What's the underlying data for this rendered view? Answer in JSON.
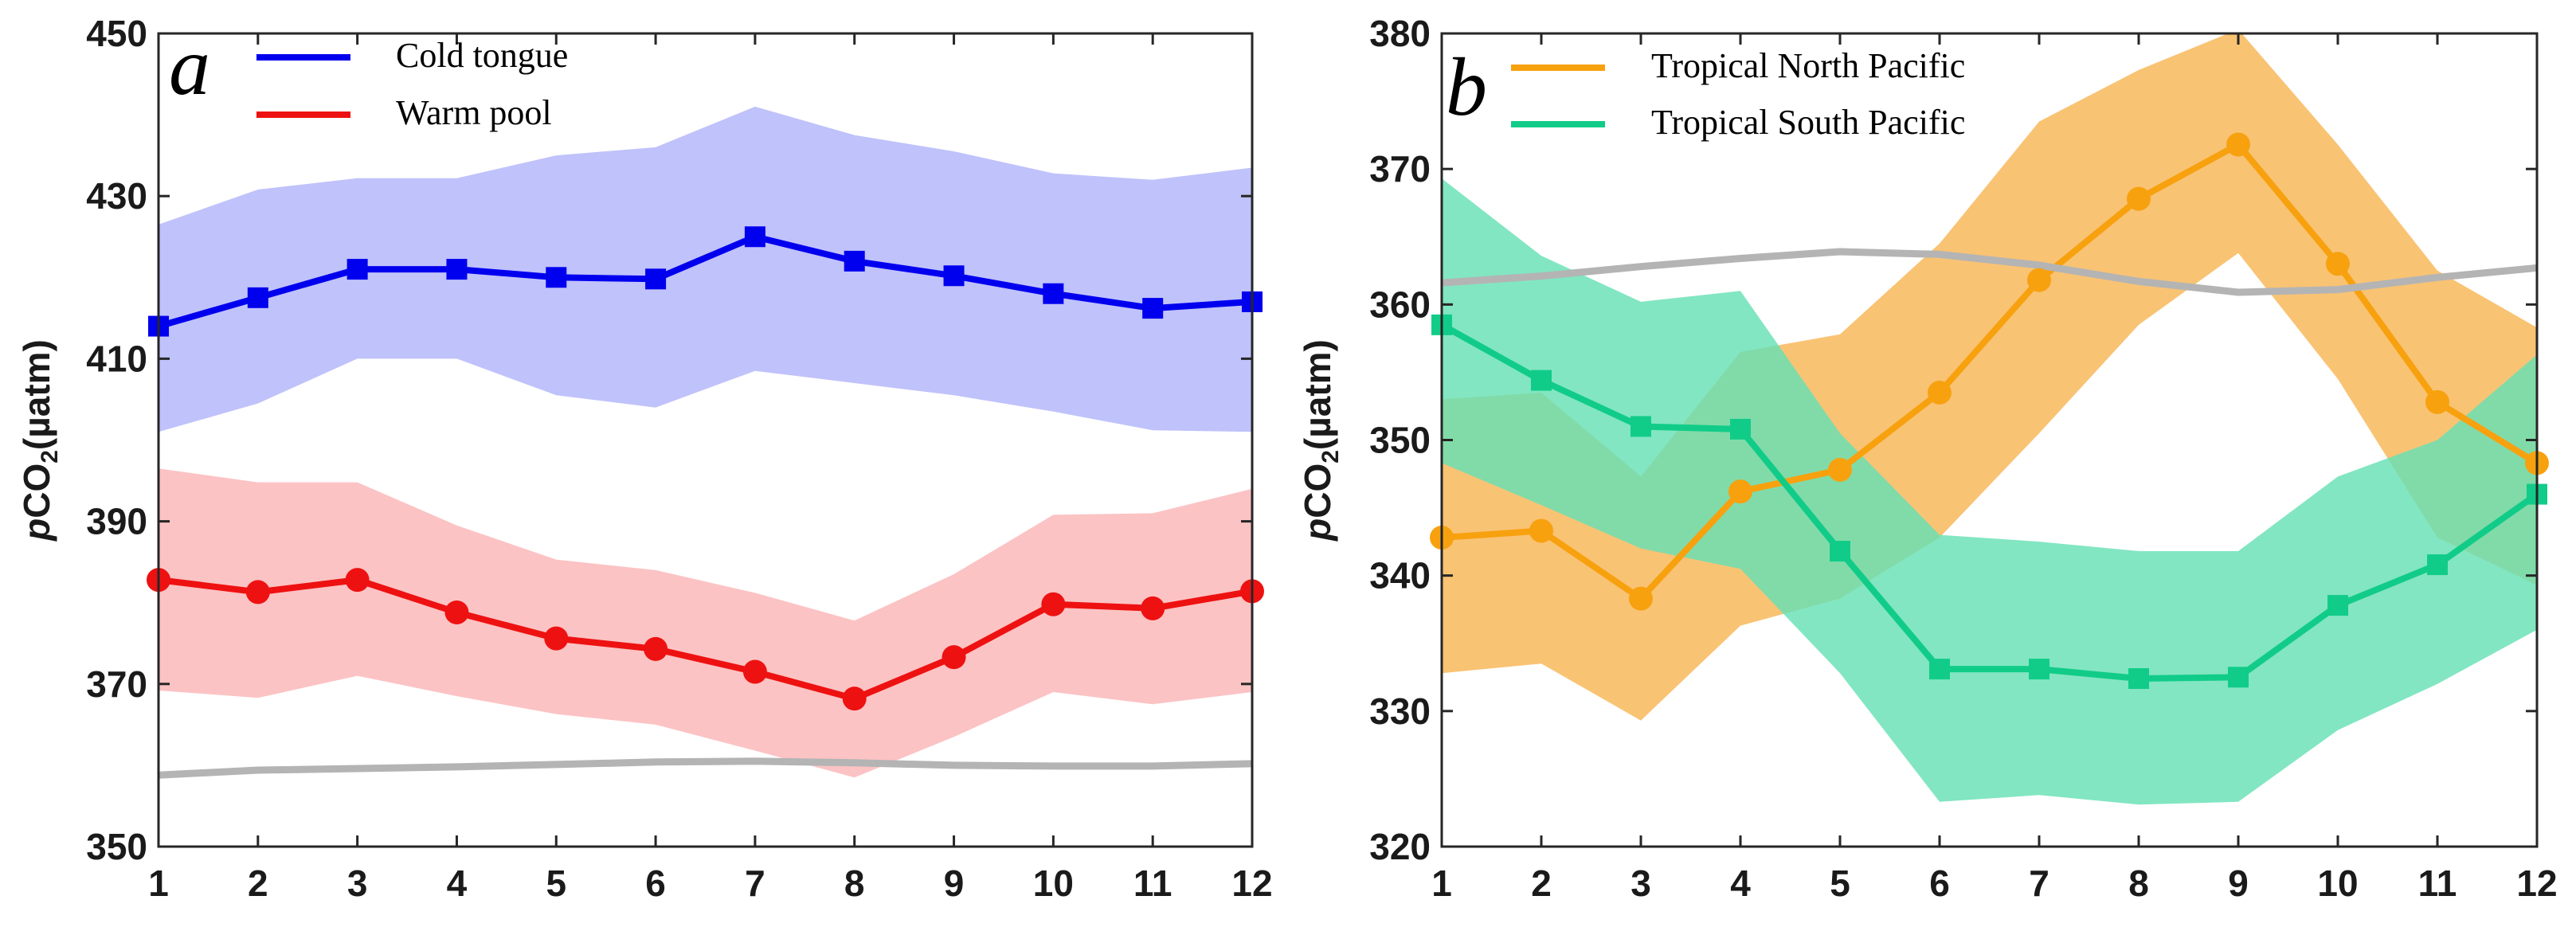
{
  "chart_data": [
    {
      "type": "line",
      "panel": "a",
      "ylabel_prefix": "p",
      "ylabel_main": "CO",
      "ylabel_sub": "2",
      "ylabel_unit": "(µatm)",
      "x": [
        1,
        2,
        3,
        4,
        5,
        6,
        7,
        8,
        9,
        10,
        11,
        12
      ],
      "xlim": [
        1,
        12
      ],
      "ylim": [
        350,
        450
      ],
      "yticks": [
        350,
        370,
        390,
        410,
        430,
        450
      ],
      "legend_position": "top-left",
      "series": [
        {
          "name": "Cold tongue",
          "color": "#0000ee",
          "band_color": "#c0c2fb",
          "marker": "square",
          "values": [
            414,
            417.5,
            421,
            421,
            420,
            419.8,
            425,
            422,
            420.2,
            418,
            416.2,
            417
          ],
          "upper": [
            426.5,
            430.8,
            432.2,
            432.2,
            435,
            436,
            441,
            437.5,
            435.5,
            432.8,
            432,
            433.5
          ],
          "lower": [
            401,
            404.5,
            410,
            410,
            405.5,
            404,
            408.5,
            407,
            405.5,
            403.5,
            401.2,
            401
          ]
        },
        {
          "name": "Warm pool",
          "color": "#ee1111",
          "band_color": "#fcc3c4",
          "marker": "circle",
          "values": [
            382.8,
            381.3,
            382.8,
            378.8,
            375.6,
            374.3,
            371.5,
            368.2,
            373.3,
            379.8,
            379.3,
            381.4
          ],
          "upper": [
            396.5,
            394.8,
            394.8,
            389.5,
            385.3,
            384,
            381.2,
            377.8,
            383.5,
            390.8,
            391,
            394
          ],
          "lower": [
            369.2,
            368.3,
            371,
            368.5,
            366.3,
            365,
            361.8,
            358.5,
            363.5,
            369,
            367.5,
            369
          ]
        },
        {
          "name": "",
          "color": "#b4b4b4",
          "marker": "none",
          "values": [
            358.8,
            359.4,
            359.6,
            359.8,
            360.1,
            360.4,
            360.5,
            360.3,
            360.0,
            359.9,
            359.9,
            360.2
          ]
        }
      ]
    },
    {
      "type": "line",
      "panel": "b",
      "ylabel_prefix": "p",
      "ylabel_main": "CO",
      "ylabel_sub": "2",
      "ylabel_unit": "(µatm)",
      "x": [
        1,
        2,
        3,
        4,
        5,
        6,
        7,
        8,
        9,
        10,
        11,
        12
      ],
      "xlim": [
        1,
        12
      ],
      "ylim": [
        320,
        380
      ],
      "yticks": [
        320,
        330,
        340,
        350,
        360,
        370,
        380
      ],
      "legend_position": "top-left",
      "series": [
        {
          "name": "Tropical North Pacific",
          "color": "#f7a10f",
          "band_color": "#f9c06d",
          "marker": "circle",
          "values": [
            342.8,
            343.3,
            338.3,
            346.2,
            347.8,
            353.5,
            361.8,
            367.8,
            371.8,
            363,
            352.8,
            348.3
          ],
          "upper": [
            353,
            353.5,
            347.3,
            356.5,
            357.8,
            364.5,
            373.5,
            377.3,
            380.3,
            371.8,
            362.5,
            358.3
          ],
          "lower": [
            332.8,
            333.5,
            329.3,
            336.3,
            338.3,
            342.8,
            350.5,
            358.5,
            363.8,
            354.5,
            342.8,
            339.3
          ]
        },
        {
          "name": "Tropical South Pacific",
          "color": "#11cc88",
          "band_color": "#66e0b4",
          "marker": "square",
          "values": [
            358.5,
            354.4,
            351,
            350.8,
            341.8,
            333.1,
            333.1,
            332.4,
            332.5,
            337.8,
            340.8,
            346
          ],
          "upper": [
            369.3,
            363.6,
            360.2,
            361,
            350.5,
            343,
            342.5,
            341.8,
            341.8,
            347.3,
            350,
            356.3
          ],
          "lower": [
            348.3,
            345.2,
            342,
            340.5,
            332.8,
            323.3,
            323.8,
            323.1,
            323.3,
            328.6,
            332,
            336
          ]
        },
        {
          "name": "",
          "color": "#b4b4b4",
          "marker": "none",
          "values": [
            361.6,
            362.1,
            362.8,
            363.4,
            363.9,
            363.7,
            362.9,
            361.7,
            360.9,
            361.1,
            362,
            362.7
          ]
        }
      ]
    }
  ]
}
